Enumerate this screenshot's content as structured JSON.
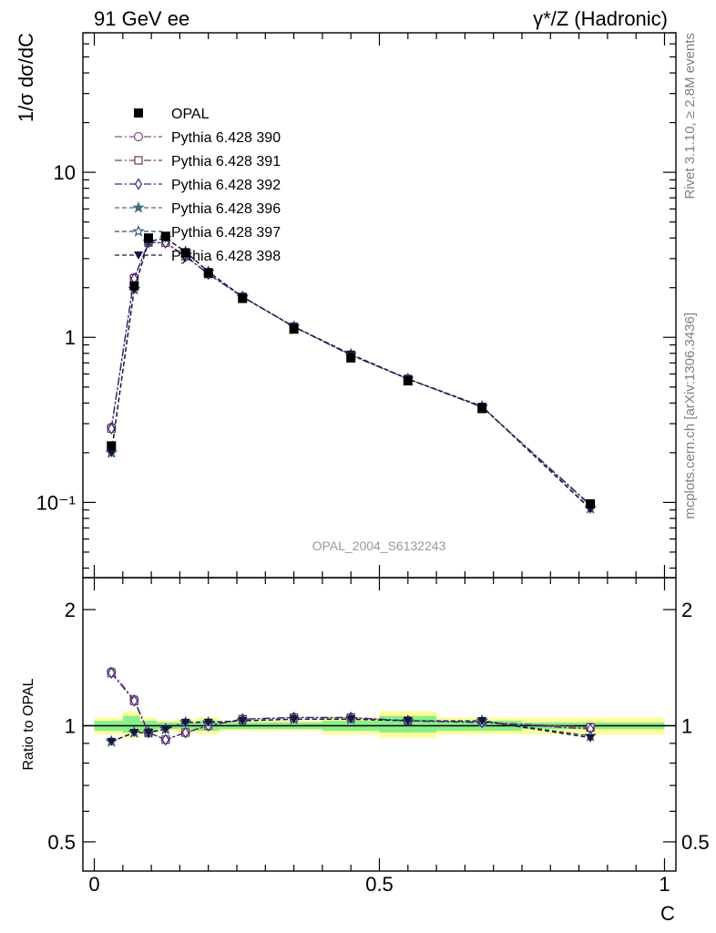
{
  "header": {
    "left": "91 GeV ee",
    "right": "γ*/Z (Hadronic)"
  },
  "side_labels": {
    "rivet": "Rivet 3.1.10, ≥ 2.8M events",
    "mcplots": "mcplots.cern.ch [arXiv:1306.3436]"
  },
  "analysis_id": "OPAL_2004_S6132243",
  "chart_data": [
    {
      "type": "scatter",
      "panel": "main",
      "ylabel": "1/σ dσ/dC",
      "yscale": "log",
      "ylim": [
        0.035,
        70
      ],
      "xlim": [
        -0.02,
        1.02
      ],
      "yticks": [
        {
          "value": 10,
          "label": "10"
        },
        {
          "value": 1,
          "label": "1"
        },
        {
          "value": 0.1,
          "label": "10⁻¹"
        }
      ],
      "legend_position": "top-left",
      "series": [
        {
          "name": "OPAL",
          "color": "#000000",
          "marker": "square-filled",
          "dash": "none",
          "x": [
            0.03,
            0.07,
            0.095,
            0.125,
            0.16,
            0.2,
            0.26,
            0.35,
            0.45,
            0.55,
            0.68,
            0.87
          ],
          "y": [
            0.22,
            2.05,
            4.0,
            4.1,
            3.25,
            2.45,
            1.72,
            1.12,
            0.75,
            0.545,
            0.37,
            0.098
          ]
        },
        {
          "name": "Pythia 6.428 390",
          "color": "#8a4f8a",
          "marker": "circle-open",
          "dash": "8,3,2,3",
          "x": [
            0.03,
            0.07,
            0.095,
            0.125,
            0.16,
            0.2,
            0.26,
            0.35,
            0.45,
            0.55,
            0.68,
            0.87
          ],
          "y": [
            0.285,
            2.3,
            3.75,
            3.75,
            3.1,
            2.42,
            1.76,
            1.16,
            0.78,
            0.56,
            0.378,
            0.096
          ]
        },
        {
          "name": "Pythia 6.428 391",
          "color": "#7a4050",
          "marker": "square-open",
          "dash": "8,3,2,3",
          "x": [
            0.03,
            0.07,
            0.095,
            0.125,
            0.16,
            0.2,
            0.26,
            0.35,
            0.45,
            0.55,
            0.68,
            0.87
          ],
          "y": [
            0.28,
            2.28,
            3.75,
            3.74,
            3.1,
            2.42,
            1.76,
            1.16,
            0.78,
            0.56,
            0.378,
            0.097
          ]
        },
        {
          "name": "Pythia 6.428 392",
          "color": "#3a2a80",
          "marker": "diamond-open",
          "dash": "8,3,2,3",
          "x": [
            0.03,
            0.07,
            0.095,
            0.125,
            0.16,
            0.2,
            0.26,
            0.35,
            0.45,
            0.55,
            0.68,
            0.87
          ],
          "y": [
            0.28,
            2.27,
            3.76,
            3.74,
            3.1,
            2.42,
            1.76,
            1.16,
            0.78,
            0.56,
            0.378,
            0.096
          ]
        },
        {
          "name": "Pythia 6.428 396",
          "color": "#3f6e84",
          "marker": "star-filled",
          "dash": "5,3",
          "x": [
            0.03,
            0.07,
            0.095,
            0.125,
            0.16,
            0.2,
            0.26,
            0.35,
            0.45,
            0.55,
            0.68,
            0.87
          ],
          "y": [
            0.2,
            1.95,
            3.8,
            4.0,
            3.3,
            2.5,
            1.76,
            1.16,
            0.79,
            0.56,
            0.382,
            0.092
          ]
        },
        {
          "name": "Pythia 6.428 397",
          "color": "#284e70",
          "marker": "star-open",
          "dash": "5,3",
          "x": [
            0.03,
            0.07,
            0.095,
            0.125,
            0.16,
            0.2,
            0.26,
            0.35,
            0.45,
            0.55,
            0.68,
            0.87
          ],
          "y": [
            0.2,
            1.96,
            3.8,
            4.0,
            3.3,
            2.5,
            1.76,
            1.16,
            0.79,
            0.56,
            0.382,
            0.092
          ]
        },
        {
          "name": "Pythia 6.428 398",
          "color": "#16163e",
          "marker": "triangle-down-filled",
          "dash": "5,3",
          "x": [
            0.03,
            0.07,
            0.095,
            0.125,
            0.16,
            0.2,
            0.26,
            0.35,
            0.45,
            0.55,
            0.68,
            0.87
          ],
          "y": [
            0.2,
            1.95,
            3.8,
            4.0,
            3.3,
            2.5,
            1.76,
            1.16,
            0.79,
            0.56,
            0.382,
            0.091
          ]
        }
      ]
    },
    {
      "type": "scatter",
      "panel": "ratio",
      "xlabel": "C",
      "ylabel": "Ratio to OPAL",
      "yscale": "log",
      "ylim": [
        0.42,
        2.42
      ],
      "xlim": [
        -0.02,
        1.02
      ],
      "yticks": [
        {
          "value": 2,
          "label": "2"
        },
        {
          "value": 1,
          "label": "1"
        },
        {
          "value": 0.5,
          "label": "0.5"
        }
      ],
      "xticks": [
        {
          "value": 0,
          "label": "0"
        },
        {
          "value": 0.5,
          "label": "0.5"
        },
        {
          "value": 1,
          "label": "1"
        }
      ],
      "uncertainty_bands": [
        {
          "x0": 0.0,
          "x1": 0.05,
          "inner": [
            0.97,
            1.03
          ],
          "outer": [
            0.95,
            1.05
          ]
        },
        {
          "x0": 0.05,
          "x1": 0.08,
          "inner": [
            0.96,
            1.06
          ],
          "outer": [
            0.93,
            1.09
          ]
        },
        {
          "x0": 0.08,
          "x1": 0.11,
          "inner": [
            0.97,
            1.03
          ],
          "outer": [
            0.95,
            1.05
          ]
        },
        {
          "x0": 0.11,
          "x1": 0.14,
          "inner": [
            0.98,
            1.02
          ],
          "outer": [
            0.97,
            1.03
          ]
        },
        {
          "x0": 0.14,
          "x1": 0.18,
          "inner": [
            0.98,
            1.02
          ],
          "outer": [
            0.96,
            1.04
          ]
        },
        {
          "x0": 0.18,
          "x1": 0.22,
          "inner": [
            0.97,
            1.03
          ],
          "outer": [
            0.95,
            1.05
          ]
        },
        {
          "x0": 0.22,
          "x1": 0.3,
          "inner": [
            0.98,
            1.02
          ],
          "outer": [
            0.97,
            1.03
          ]
        },
        {
          "x0": 0.3,
          "x1": 0.4,
          "inner": [
            0.98,
            1.02
          ],
          "outer": [
            0.97,
            1.03
          ]
        },
        {
          "x0": 0.4,
          "x1": 0.5,
          "inner": [
            0.97,
            1.03
          ],
          "outer": [
            0.95,
            1.05
          ]
        },
        {
          "x0": 0.5,
          "x1": 0.6,
          "inner": [
            0.96,
            1.06
          ],
          "outer": [
            0.93,
            1.09
          ]
        },
        {
          "x0": 0.6,
          "x1": 0.75,
          "inner": [
            0.97,
            1.03
          ],
          "outer": [
            0.95,
            1.05
          ]
        },
        {
          "x0": 0.75,
          "x1": 1.0,
          "inner": [
            0.98,
            1.02
          ],
          "outer": [
            0.95,
            1.05
          ]
        }
      ],
      "series": [
        {
          "name": "Pythia 6.428 390",
          "color": "#8a4f8a",
          "marker": "circle-open",
          "dash": "8,3,2,3",
          "x": [
            0.03,
            0.07,
            0.095,
            0.125,
            0.16,
            0.2,
            0.26,
            0.35,
            0.45,
            0.55,
            0.68,
            0.87
          ],
          "y": [
            1.38,
            1.17,
            0.96,
            0.92,
            0.96,
            1.0,
            1.04,
            1.05,
            1.05,
            1.03,
            1.02,
            0.99
          ]
        },
        {
          "name": "Pythia 6.428 391",
          "color": "#7a4050",
          "marker": "square-open",
          "dash": "8,3,2,3",
          "x": [
            0.03,
            0.07,
            0.095,
            0.125,
            0.16,
            0.2,
            0.26,
            0.35,
            0.45,
            0.55,
            0.68,
            0.87
          ],
          "y": [
            1.37,
            1.16,
            0.96,
            0.92,
            0.96,
            1.0,
            1.04,
            1.05,
            1.05,
            1.03,
            1.02,
            0.99
          ]
        },
        {
          "name": "Pythia 6.428 392",
          "color": "#3a2a80",
          "marker": "diamond-open",
          "dash": "8,3,2,3",
          "x": [
            0.03,
            0.07,
            0.095,
            0.125,
            0.16,
            0.2,
            0.26,
            0.35,
            0.45,
            0.55,
            0.68,
            0.87
          ],
          "y": [
            1.37,
            1.16,
            0.96,
            0.92,
            0.96,
            1.0,
            1.04,
            1.05,
            1.05,
            1.03,
            1.02,
            0.98
          ]
        },
        {
          "name": "Pythia 6.428 396",
          "color": "#3f6e84",
          "marker": "star-filled",
          "dash": "5,3",
          "x": [
            0.03,
            0.07,
            0.095,
            0.125,
            0.16,
            0.2,
            0.26,
            0.35,
            0.45,
            0.55,
            0.68,
            0.87
          ],
          "y": [
            0.91,
            0.96,
            0.96,
            0.98,
            1.02,
            1.02,
            1.03,
            1.04,
            1.04,
            1.03,
            1.03,
            0.94
          ]
        },
        {
          "name": "Pythia 6.428 397",
          "color": "#284e70",
          "marker": "star-open",
          "dash": "5,3",
          "x": [
            0.03,
            0.07,
            0.095,
            0.125,
            0.16,
            0.2,
            0.26,
            0.35,
            0.45,
            0.55,
            0.68,
            0.87
          ],
          "y": [
            0.91,
            0.96,
            0.96,
            0.98,
            1.02,
            1.02,
            1.03,
            1.04,
            1.04,
            1.03,
            1.03,
            0.94
          ]
        },
        {
          "name": "Pythia 6.428 398",
          "color": "#16163e",
          "marker": "triangle-down-filled",
          "dash": "5,3",
          "x": [
            0.03,
            0.07,
            0.095,
            0.125,
            0.16,
            0.2,
            0.26,
            0.35,
            0.45,
            0.55,
            0.68,
            0.87
          ],
          "y": [
            0.91,
            0.96,
            0.96,
            0.98,
            1.02,
            1.02,
            1.03,
            1.04,
            1.04,
            1.03,
            1.03,
            0.93
          ]
        }
      ]
    }
  ]
}
